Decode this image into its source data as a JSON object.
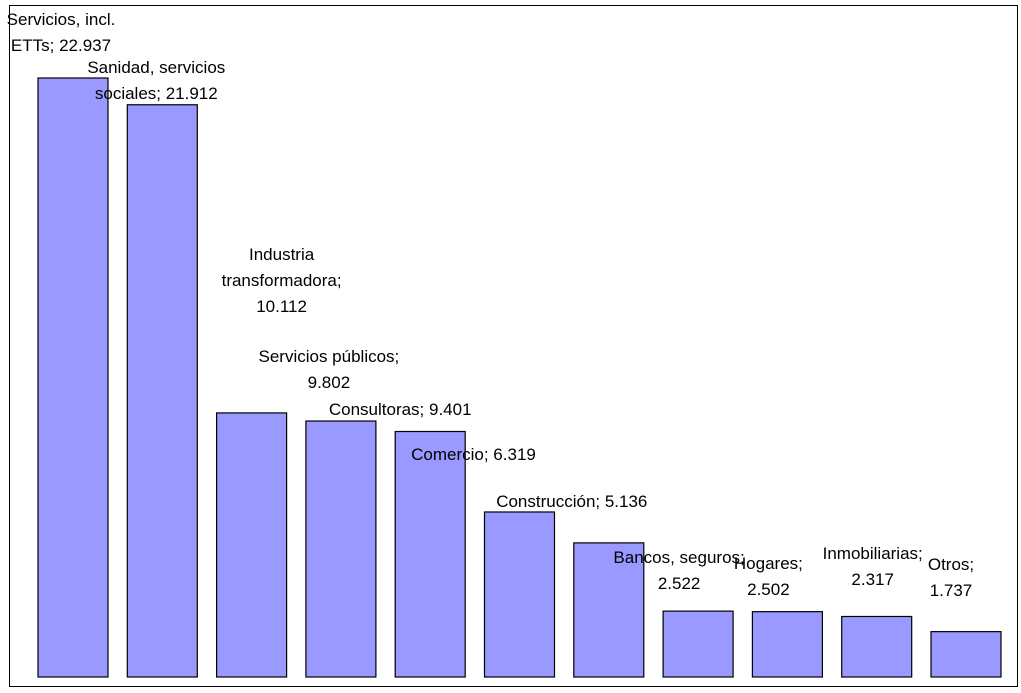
{
  "chart_data": {
    "type": "bar",
    "categories": [
      "Servicios, incl. ETTs",
      "Sanidad, servicios sociales",
      "Industria transformadora",
      "Servicios públicos",
      "Consultoras",
      "Comercio",
      "Construcción",
      "Bancos, seguros",
      "Hogares",
      "Inmobiliarias",
      "Otros"
    ],
    "values": [
      22937,
      21912,
      10112,
      9802,
      9401,
      6319,
      5136,
      2522,
      2502,
      2317,
      1737
    ],
    "data_labels": [
      [
        "Servicios, incl.",
        "ETTs; 22.937"
      ],
      [
        "Sanidad, servicios",
        "sociales; 21.912"
      ],
      [
        "Industria",
        "transformadora;",
        "10.112"
      ],
      [
        "Servicios públicos;",
        "9.802"
      ],
      [
        "Consultoras; 9.401"
      ],
      [
        "Comercio; 6.319"
      ],
      [
        "Construcción; 5.136"
      ],
      [
        "Bancos, seguros;",
        "2.522"
      ],
      [
        "Hogares;",
        "2.502"
      ],
      [
        "Inmobiliarias;",
        "2.317"
      ],
      [
        "Otros;",
        "1.737"
      ]
    ],
    "ylim": [
      0,
      25000
    ],
    "grid": false,
    "legend": "none",
    "colors": {
      "bar": "#9999ff",
      "border": "#000000"
    }
  }
}
